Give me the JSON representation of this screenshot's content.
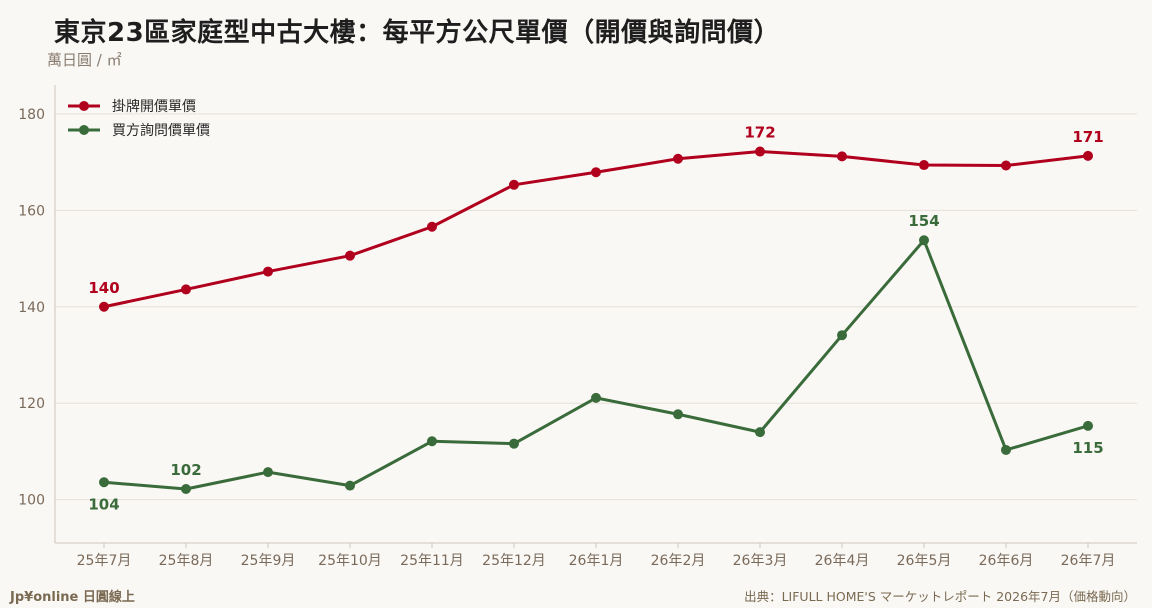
{
  "title": "東京23區家庭型中古大樓：每平方公尺單價（開價與詢問價）",
  "unit_label": "萬日圓 / ㎡",
  "footer": {
    "brand": "Jp¥online 日圓線上",
    "source": "出典：LIFULL HOME'S マーケットレポート 2026年7月（価格動向）"
  },
  "colors": {
    "asking": "#b0001e",
    "inquiry": "#3a6b3a",
    "grid": "#e6e0d8",
    "axis": "#cfc6bb"
  },
  "chart_data": {
    "type": "line",
    "categories": [
      "25年7月",
      "25年8月",
      "25年9月",
      "25年10月",
      "25年11月",
      "25年12月",
      "26年1月",
      "26年2月",
      "26年3月",
      "26年4月",
      "26年5月",
      "26年6月",
      "26年7月"
    ],
    "ylim": [
      91,
      186
    ],
    "yticks": [
      100,
      120,
      140,
      160,
      180
    ],
    "grid": true,
    "legend": "top-left",
    "series": [
      {
        "name": "掛牌開價單價",
        "color": "#b0001e",
        "values": [
          140.0,
          143.6,
          147.3,
          150.6,
          156.6,
          165.3,
          167.9,
          170.7,
          172.2,
          171.2,
          169.4,
          169.3,
          171.3
        ],
        "labels": [
          {
            "index": 0,
            "text": "140",
            "pos": "above"
          },
          {
            "index": 8,
            "text": "172",
            "pos": "above"
          },
          {
            "index": 12,
            "text": "171",
            "pos": "above"
          }
        ]
      },
      {
        "name": "買方詢問價單價",
        "color": "#3a6b3a",
        "values": [
          103.6,
          102.2,
          105.7,
          102.9,
          112.1,
          111.6,
          121.1,
          117.7,
          114.0,
          134.1,
          153.8,
          110.3,
          115.3
        ],
        "labels": [
          {
            "index": 0,
            "text": "104",
            "pos": "below"
          },
          {
            "index": 1,
            "text": "102",
            "pos": "above"
          },
          {
            "index": 10,
            "text": "154",
            "pos": "above"
          },
          {
            "index": 12,
            "text": "115",
            "pos": "below"
          }
        ]
      }
    ]
  }
}
